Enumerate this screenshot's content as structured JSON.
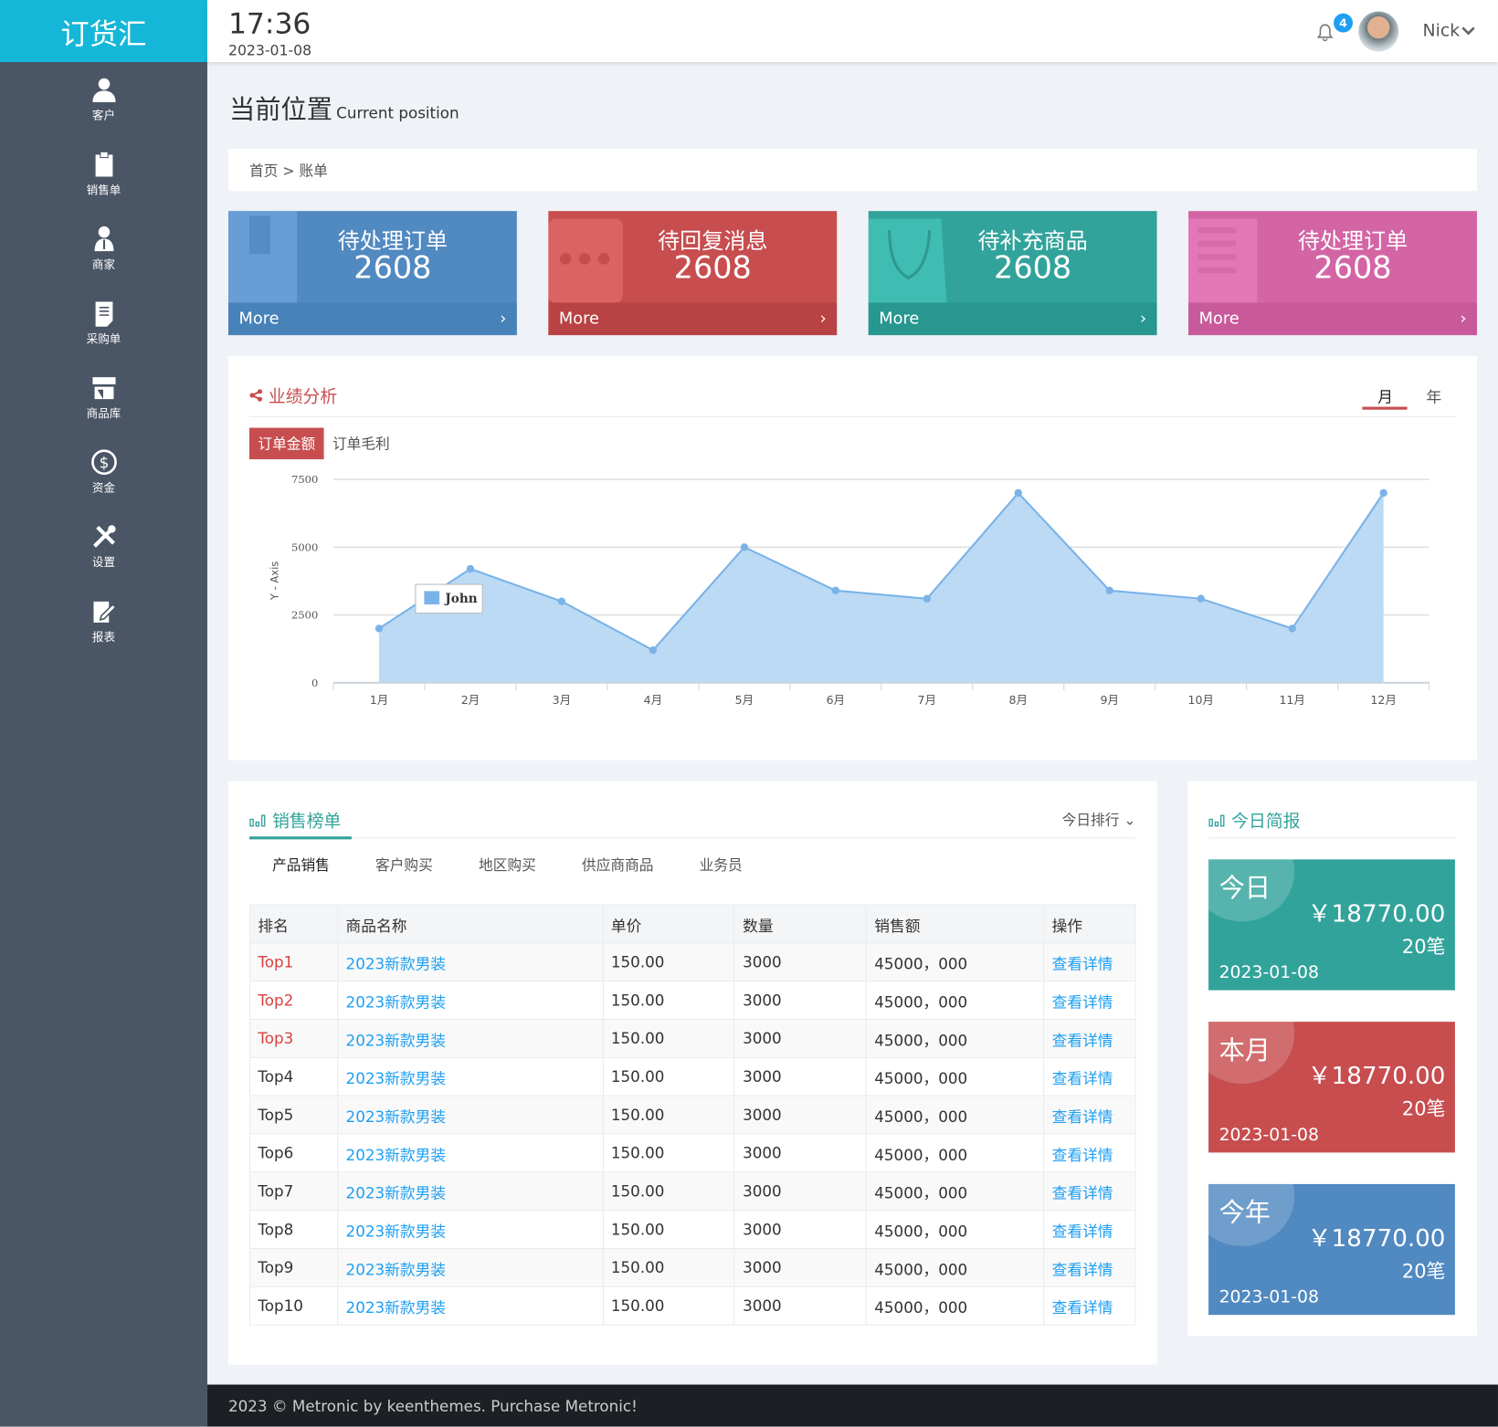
{
  "app": {
    "logo": "订货汇"
  },
  "header": {
    "time": "17:36",
    "date": "2023-01-08",
    "notifications": "4",
    "user": "Nick"
  },
  "sidebar": {
    "items": [
      {
        "label": "客户",
        "icon": "user-icon"
      },
      {
        "label": "销售单",
        "icon": "clipboard-icon"
      },
      {
        "label": "商家",
        "icon": "merchant-icon"
      },
      {
        "label": "采购单",
        "icon": "document-icon"
      },
      {
        "label": "商品库",
        "icon": "store-icon"
      },
      {
        "label": "资金",
        "icon": "dollar-icon"
      },
      {
        "label": "设置",
        "icon": "tools-icon"
      },
      {
        "label": "报表",
        "icon": "edit-icon"
      }
    ]
  },
  "page": {
    "title": "当前位置",
    "subtitle": "Current position",
    "breadcrumb": "首页 > 账单"
  },
  "cards": [
    {
      "title": "待处理订单",
      "value": "2608",
      "more": "More",
      "color": "#5189c1",
      "footer": "#4782b9",
      "icon": "inbox-icon"
    },
    {
      "title": "待回复消息",
      "value": "2608",
      "more": "More",
      "color": "#c74d4f",
      "footer": "#b94244",
      "icon": "chat-icon"
    },
    {
      "title": "待补充商品",
      "value": "2608",
      "more": "More",
      "color": "#32a39b",
      "footer": "#28978f",
      "icon": "bag-icon"
    },
    {
      "title": "待处理订单",
      "value": "2608",
      "more": "More",
      "color": "#d365a5",
      "footer": "#c85a9b",
      "icon": "list-icon"
    }
  ],
  "performance": {
    "title": "业绩分析",
    "period_tabs": [
      "月",
      "年"
    ],
    "active_period": "月",
    "metric_tabs": [
      "订单金额",
      "订单毛利"
    ],
    "active_metric": "订单金额"
  },
  "chart_data": {
    "type": "area",
    "ylabel": "Y - Axis",
    "ylim": [
      0,
      7500
    ],
    "yticks": [
      0,
      2500,
      5000,
      7500
    ],
    "categories": [
      "1月",
      "2月",
      "3月",
      "4月",
      "5月",
      "6月",
      "7月",
      "8月",
      "9月",
      "10月",
      "11月",
      "12月"
    ],
    "series": [
      {
        "name": "John",
        "values": [
          2000,
          4200,
          3000,
          1200,
          5000,
          3400,
          3100,
          7000,
          3400,
          3100,
          2000,
          7000
        ]
      }
    ],
    "color": "#7ab3e8",
    "grid": true,
    "legend": "inside"
  },
  "sales": {
    "title": "销售榜单",
    "dropdown": "今日排行",
    "tabs": [
      "产品销售",
      "客户购买",
      "地区购买",
      "供应商商品",
      "业务员"
    ],
    "active_tab": "产品销售",
    "columns": [
      "排名",
      "商品名称",
      "单价",
      "数量",
      "销售额",
      "操作"
    ],
    "rows": [
      [
        "Top1",
        "2023新款男装",
        "150.00",
        "3000",
        "45000，000",
        "查看详情"
      ],
      [
        "Top2",
        "2023新款男装",
        "150.00",
        "3000",
        "45000，000",
        "查看详情"
      ],
      [
        "Top3",
        "2023新款男装",
        "150.00",
        "3000",
        "45000，000",
        "查看详情"
      ],
      [
        "Top4",
        "2023新款男装",
        "150.00",
        "3000",
        "45000，000",
        "查看详情"
      ],
      [
        "Top5",
        "2023新款男装",
        "150.00",
        "3000",
        "45000，000",
        "查看详情"
      ],
      [
        "Top6",
        "2023新款男装",
        "150.00",
        "3000",
        "45000，000",
        "查看详情"
      ],
      [
        "Top7",
        "2023新款男装",
        "150.00",
        "3000",
        "45000，000",
        "查看详情"
      ],
      [
        "Top8",
        "2023新款男装",
        "150.00",
        "3000",
        "45000，000",
        "查看详情"
      ],
      [
        "Top9",
        "2023新款男装",
        "150.00",
        "3000",
        "45000，000",
        "查看详情"
      ],
      [
        "Top10",
        "2023新款男装",
        "150.00",
        "3000",
        "45000，000",
        "查看详情"
      ]
    ]
  },
  "summary": {
    "title": "今日简报",
    "items": [
      {
        "label": "今日",
        "amount": "￥18770.00",
        "count": "20笔",
        "date": "2023-01-08",
        "color": "#32a39b"
      },
      {
        "label": "本月",
        "amount": "￥18770.00",
        "count": "20笔",
        "date": "2023-01-08",
        "color": "#c74d4f"
      },
      {
        "label": "今年",
        "amount": "￥18770.00",
        "count": "20笔",
        "date": "2023-01-08",
        "color": "#5189c1"
      }
    ]
  },
  "footer": {
    "text": "2023 © Metronic by keenthemes. Purchase Metronic!"
  }
}
